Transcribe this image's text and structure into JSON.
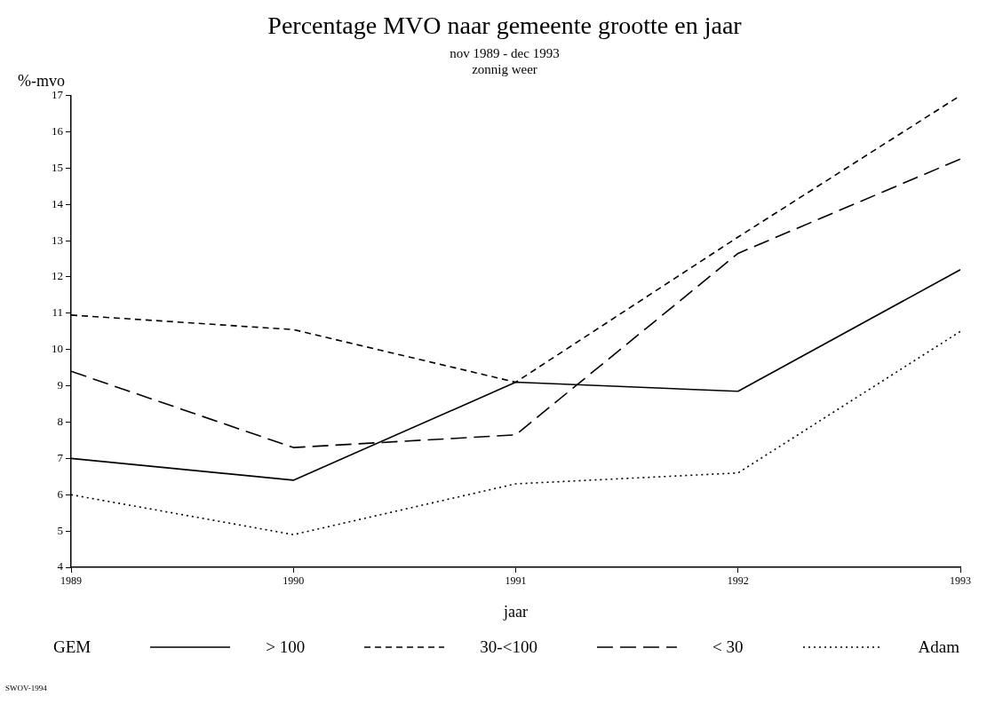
{
  "chart_data": {
    "type": "line",
    "title": "Percentage MVO naar gemeente grootte en jaar",
    "subtitle": "nov 1989 - dec 1993\nzonnig weer",
    "xlabel": "jaar",
    "ylabel": "%-mvo",
    "legend_title": "GEM",
    "x": [
      1989,
      1990,
      1991,
      1992,
      1993
    ],
    "series": [
      {
        "name": "> 100",
        "color": "#000000",
        "line_style": "solid",
        "values": [
          7.0,
          6.4,
          9.1,
          8.85,
          12.2
        ]
      },
      {
        "name": "30-<100",
        "color": "#000000",
        "line_style": "dashed",
        "values": [
          10.95,
          10.55,
          9.1,
          13.1,
          17.0
        ]
      },
      {
        "name": "< 30",
        "color": "#000000",
        "line_style": "longdash",
        "values": [
          9.4,
          7.3,
          7.65,
          12.65,
          15.25
        ]
      },
      {
        "name": "Adam",
        "color": "#000000",
        "line_style": "dotted",
        "values": [
          6.0,
          4.9,
          6.3,
          6.6,
          10.5
        ]
      }
    ],
    "xlim": [
      1989,
      1993
    ],
    "xticks": [
      1989,
      1990,
      1991,
      1992,
      1993
    ],
    "ylim": [
      4,
      17
    ],
    "yticks": [
      4,
      5,
      6,
      7,
      8,
      9,
      10,
      11,
      12,
      13,
      14,
      15,
      16,
      17
    ],
    "grid": false,
    "legend": "bottom",
    "marker": "none",
    "annotations": [
      "SWOV-1994"
    ]
  }
}
